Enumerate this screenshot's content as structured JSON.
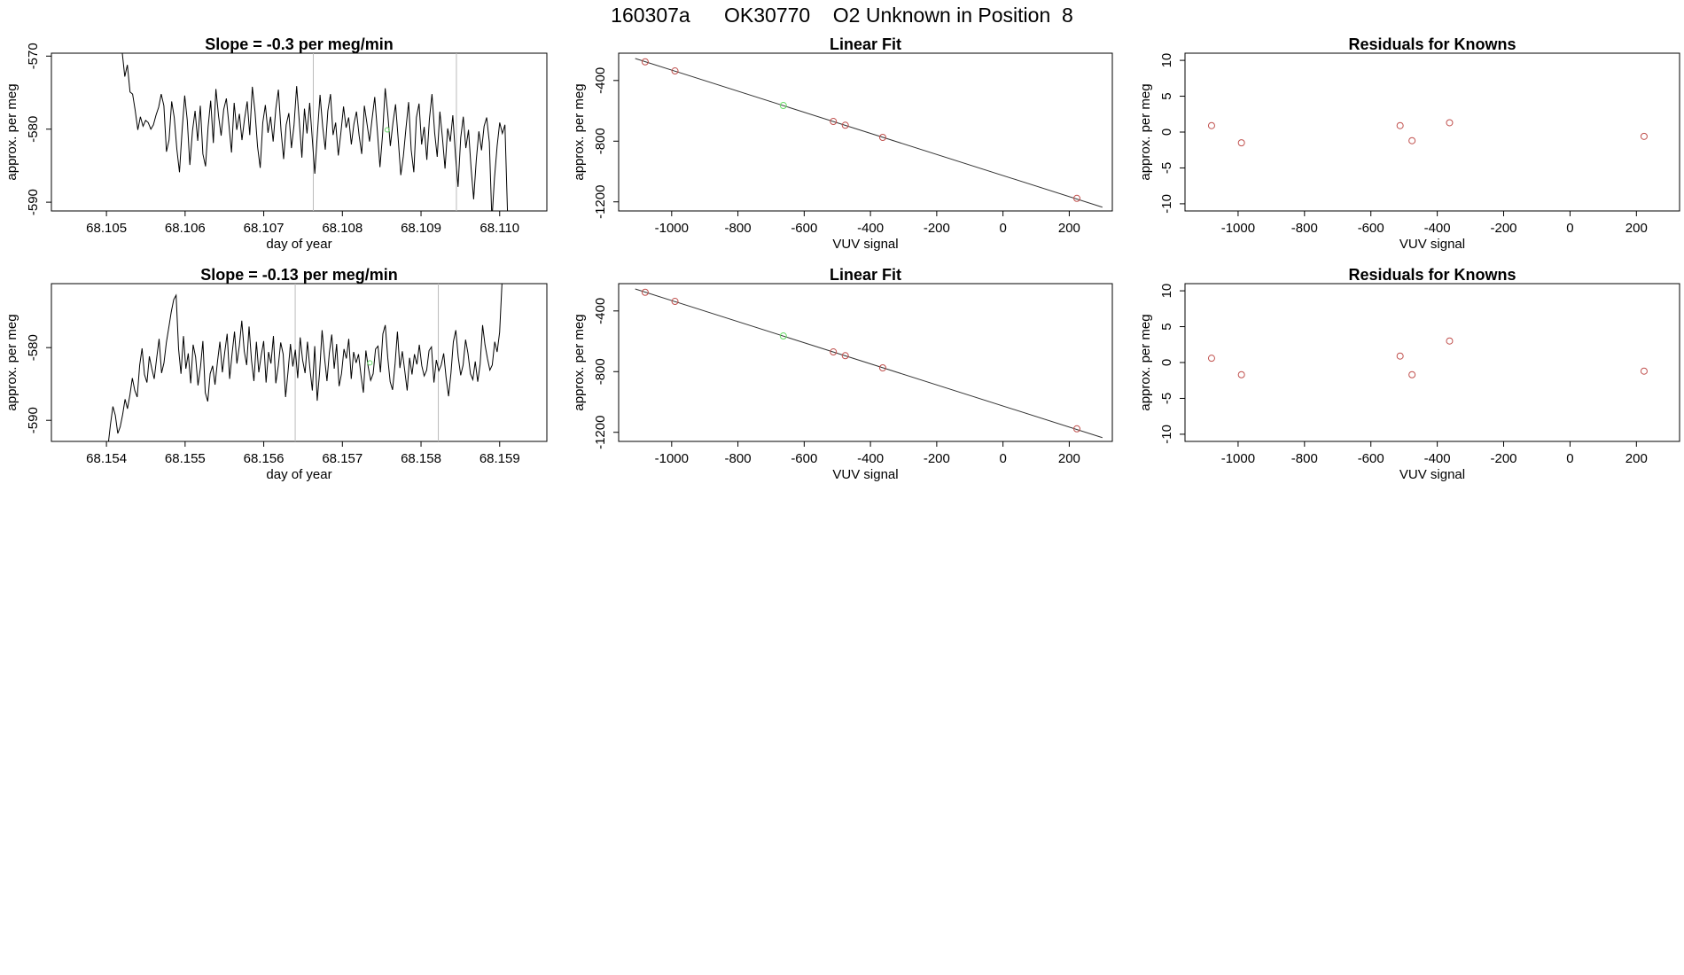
{
  "header": {
    "title": "160307a      OK30770    O2 Unknown in Position  8"
  },
  "colors": {
    "line": "#000000",
    "known_point": "#c0504d",
    "unknown_point": "#66dd66",
    "marker_line": "#bbbbbb",
    "fit_line": "#333333"
  },
  "chart_data": [
    {
      "type": "line",
      "title": "Slope =  -0.3  per meg/min",
      "xlabel": "day of year",
      "ylabel": "approx. per meg",
      "xlim": [
        68.1043,
        68.1106
      ],
      "ylim": [
        -591.2,
        -569.6
      ],
      "xticks": [
        "68.105",
        "68.106",
        "68.107",
        "68.108",
        "68.109",
        "68.110"
      ],
      "yticks": [
        "-570",
        "-580",
        "-590"
      ],
      "marker_lines_x": [
        68.10763,
        68.10945
      ],
      "unknown_point": {
        "x": 68.10857,
        "y": -580.1
      },
      "series": [
        {
          "name": "trace",
          "x_start": 68.1052,
          "x_end": 68.1101,
          "values": [
            -569.5,
            -572.8,
            -571.2,
            -574.9,
            -575.2,
            -577.4,
            -580.1,
            -578.3,
            -579.6,
            -578.8,
            -579.1,
            -580.0,
            -579.4,
            -578.1,
            -577.0,
            -575.2,
            -576.8,
            -583.1,
            -581.5,
            -576.2,
            -578.4,
            -582.7,
            -585.9,
            -580.3,
            -575.4,
            -578.8,
            -584.9,
            -580.2,
            -577.5,
            -581.6,
            -576.8,
            -583.4,
            -585.1,
            -579.7,
            -576.1,
            -581.9,
            -574.5,
            -578.2,
            -580.9,
            -577.3,
            -575.8,
            -579.4,
            -583.2,
            -576.4,
            -580.1,
            -577.9,
            -581.5,
            -578.6,
            -576.2,
            -580.8,
            -574.2,
            -577.6,
            -582.4,
            -585.3,
            -579.1,
            -576.7,
            -580.5,
            -578.3,
            -581.7,
            -577.2,
            -574.6,
            -580.2,
            -584.1,
            -579.4,
            -577.8,
            -582.6,
            -579.5,
            -574.1,
            -578.8,
            -583.9,
            -577.2,
            -580.6,
            -576.4,
            -581.3,
            -586.1,
            -580.4,
            -575.3,
            -579.7,
            -582.8,
            -577.5,
            -575.2,
            -580.8,
            -579.1,
            -583.6,
            -580.5,
            -576.9,
            -579.8,
            -578.4,
            -582.1,
            -579.3,
            -577.6,
            -580.9,
            -583.4,
            -576.8,
            -579.2,
            -581.7,
            -578.5,
            -575.6,
            -580.3,
            -585.2,
            -580.8,
            -574.4,
            -577.9,
            -582.3,
            -579.1,
            -576.6,
            -581.4,
            -586.3,
            -583.7,
            -579.8,
            -576.3,
            -582.8,
            -585.9,
            -578.4,
            -576.5,
            -582.1,
            -579.7,
            -584.2,
            -578.6,
            -575.2,
            -580.5,
            -583.8,
            -577.6,
            -581.2,
            -585.4,
            -579.9,
            -581.7,
            -578.1,
            -583.6,
            -587.9,
            -581.2,
            -578.3,
            -582.6,
            -580.1,
            -585.3,
            -589.6,
            -584.2,
            -580.3,
            -582.9,
            -579.6,
            -578.4,
            -581.8,
            -592.5,
            -586.7,
            -582.3,
            -579.1,
            -580.6,
            -579.4,
            -591.4
          ]
        }
      ]
    },
    {
      "type": "scatter",
      "title": "Linear Fit",
      "xlabel": "VUV signal",
      "ylabel": "approx. per meg",
      "xlim": [
        -1160,
        330
      ],
      "ylim": [
        -1260,
        -220
      ],
      "xticks": [
        "-1000",
        "-800",
        "-600",
        "-400",
        "-200",
        "0",
        "200"
      ],
      "yticks": [
        "-400",
        "-800",
        "-1200"
      ],
      "fit_line": {
        "x1": -1110,
        "y1": -255,
        "x2": 300,
        "y2": -1235
      },
      "knowns": [
        {
          "x": -1080,
          "y": -277
        },
        {
          "x": -990,
          "y": -337
        },
        {
          "x": -512,
          "y": -670
        },
        {
          "x": -476,
          "y": -695
        },
        {
          "x": -363,
          "y": -775
        },
        {
          "x": 223,
          "y": -1177
        }
      ],
      "unknowns": [
        {
          "x": -663,
          "y": -565
        }
      ]
    },
    {
      "type": "scatter",
      "title": "Residuals for Knowns",
      "xlabel": "VUV signal",
      "ylabel": "approx. per meg",
      "xlim": [
        -1160,
        330
      ],
      "ylim": [
        -11,
        11
      ],
      "xticks": [
        "-1000",
        "-800",
        "-600",
        "-400",
        "-200",
        "0",
        "200"
      ],
      "yticks": [
        "10",
        "5",
        "0",
        "-5",
        "-10"
      ],
      "knowns": [
        {
          "x": -1080,
          "y": 0.9
        },
        {
          "x": -990,
          "y": -1.5
        },
        {
          "x": -512,
          "y": 0.9
        },
        {
          "x": -476,
          "y": -1.2
        },
        {
          "x": -363,
          "y": 1.3
        },
        {
          "x": 223,
          "y": -0.6
        }
      ]
    },
    {
      "type": "line",
      "title": "Slope =  -0.13  per meg/min",
      "xlabel": "day of year",
      "ylabel": "approx. per meg",
      "xlim": [
        68.1533,
        68.1596
      ],
      "ylim": [
        -592.9,
        -571.2
      ],
      "xticks": [
        "68.154",
        "68.155",
        "68.156",
        "68.157",
        "68.158",
        "68.159"
      ],
      "yticks": [
        "-580",
        "-590"
      ],
      "marker_lines_x": [
        68.1564,
        68.15822
      ],
      "unknown_point": {
        "x": 68.15735,
        "y": -582.1
      },
      "series": [
        {
          "name": "trace",
          "x_start": 68.15402,
          "x_end": 68.15903,
          "values": [
            -593.5,
            -590.6,
            -588.1,
            -589.3,
            -591.8,
            -590.9,
            -589.2,
            -587.1,
            -588.4,
            -586.5,
            -584.2,
            -585.9,
            -586.8,
            -582.4,
            -580.1,
            -583.7,
            -584.8,
            -581.2,
            -582.9,
            -584.3,
            -581.4,
            -578.8,
            -583.5,
            -582.1,
            -579.3,
            -577.2,
            -575.1,
            -573.4,
            -572.8,
            -580.2,
            -583.6,
            -578.4,
            -582.9,
            -580.8,
            -584.9,
            -579.6,
            -581.3,
            -585.2,
            -582.7,
            -579.1,
            -586.2,
            -587.4,
            -583.6,
            -582.5,
            -585.1,
            -581.9,
            -579.2,
            -583.4,
            -580.6,
            -578.1,
            -584.3,
            -580.9,
            -577.8,
            -582.2,
            -579.7,
            -576.3,
            -580.5,
            -582.4,
            -577.1,
            -581.8,
            -584.6,
            -579.2,
            -583.4,
            -581.0,
            -579.1,
            -584.8,
            -580.6,
            -582.2,
            -578.4,
            -584.9,
            -582.5,
            -579.3,
            -580.9,
            -586.8,
            -583.4,
            -579.5,
            -582.6,
            -580.3,
            -584.2,
            -578.6,
            -581.7,
            -583.5,
            -579.2,
            -582.8,
            -585.9,
            -579.8,
            -587.3,
            -583.4,
            -577.6,
            -581.3,
            -584.6,
            -580.7,
            -578.2,
            -582.9,
            -579.5,
            -585.3,
            -583.6,
            -580.2,
            -581.5,
            -578.8,
            -584.3,
            -580.6,
            -582.1,
            -580.9,
            -583.8,
            -586.2,
            -580.4,
            -582.7,
            -584.5,
            -583.6,
            -580.2,
            -579.8,
            -583.4,
            -578.1,
            -576.9,
            -581.4,
            -584.7,
            -585.8,
            -582.3,
            -577.8,
            -582.8,
            -580.5,
            -583.2,
            -585.9,
            -581.4,
            -583.7,
            -580.9,
            -582.3,
            -579.6,
            -582.5,
            -583.9,
            -583.1,
            -580.4,
            -579.9,
            -584.8,
            -581.7,
            -583.2,
            -582.4,
            -580.8,
            -584.1,
            -586.7,
            -583.5,
            -579.2,
            -577.6,
            -581.3,
            -583.8,
            -582.4,
            -578.9,
            -580.8,
            -583.6,
            -584.4,
            -581.9,
            -584.7,
            -582.3,
            -576.9,
            -579.6,
            -581.5,
            -583.1,
            -582.4,
            -579.2,
            -580.6,
            -577.9,
            -571.1
          ]
        }
      ]
    },
    {
      "type": "scatter",
      "title": "Linear Fit",
      "xlabel": "VUV signal",
      "ylabel": "approx. per meg",
      "xlim": [
        -1160,
        330
      ],
      "ylim": [
        -1260,
        -220
      ],
      "xticks": [
        "-1000",
        "-800",
        "-600",
        "-400",
        "-200",
        "0",
        "200"
      ],
      "yticks": [
        "-400",
        "-800",
        "-1200"
      ],
      "fit_line": {
        "x1": -1110,
        "y1": -255,
        "x2": 300,
        "y2": -1235
      },
      "knowns": [
        {
          "x": -1080,
          "y": -277
        },
        {
          "x": -990,
          "y": -337
        },
        {
          "x": -512,
          "y": -670
        },
        {
          "x": -476,
          "y": -695
        },
        {
          "x": -363,
          "y": -775
        },
        {
          "x": 223,
          "y": -1177
        }
      ],
      "unknowns": [
        {
          "x": -663,
          "y": -565
        }
      ]
    },
    {
      "type": "scatter",
      "title": "Residuals for Knowns",
      "xlabel": "VUV signal",
      "ylabel": "approx. per meg",
      "xlim": [
        -1160,
        330
      ],
      "ylim": [
        -11,
        11
      ],
      "xticks": [
        "-1000",
        "-800",
        "-600",
        "-400",
        "-200",
        "0",
        "200"
      ],
      "yticks": [
        "10",
        "5",
        "0",
        "-5",
        "-10"
      ],
      "knowns": [
        {
          "x": -1080,
          "y": 0.6
        },
        {
          "x": -990,
          "y": -1.7
        },
        {
          "x": -512,
          "y": 0.9
        },
        {
          "x": -476,
          "y": -1.7
        },
        {
          "x": -363,
          "y": 3.0
        },
        {
          "x": 223,
          "y": -1.2
        }
      ]
    }
  ]
}
